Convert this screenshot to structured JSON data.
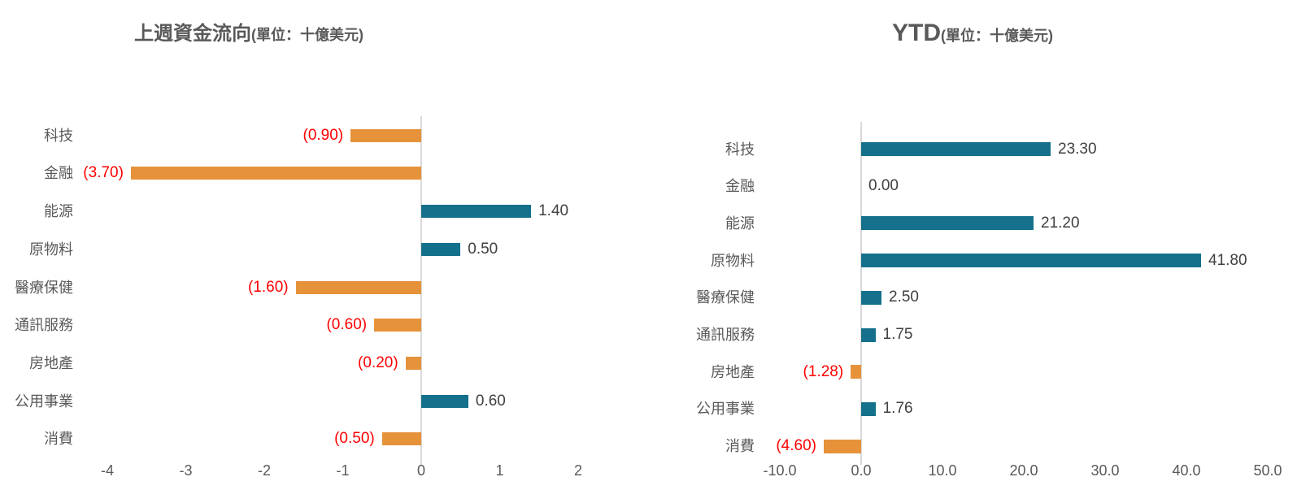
{
  "chart_data": [
    {
      "type": "bar",
      "orientation": "horizontal",
      "title": "上週資金流向",
      "title_unit": "(單位：十億美元)",
      "categories": [
        "科技",
        "金融",
        "能源",
        "原物料",
        "醫療保健",
        "通訊服務",
        "房地產",
        "公用事業",
        "消費"
      ],
      "values": [
        -0.9,
        -3.7,
        1.4,
        0.5,
        -1.6,
        -0.6,
        -0.2,
        0.6,
        -0.5
      ],
      "value_labels": [
        "(0.90)",
        "(3.70)",
        "1.40",
        "0.50",
        "(1.60)",
        "(0.60)",
        "(0.20)",
        "0.60",
        "(0.50)"
      ],
      "xlim": [
        -4,
        2
      ],
      "xticks": [
        -4,
        -3,
        -2,
        -1,
        0,
        1,
        2
      ],
      "xtick_labels": [
        "-4",
        "-3",
        "-2",
        "-1",
        "0",
        "1",
        "2"
      ],
      "grid": false,
      "legend": "none"
    },
    {
      "type": "bar",
      "orientation": "horizontal",
      "title": "YTD",
      "title_unit": "(單位：十億美元)",
      "categories": [
        "科技",
        "金融",
        "能源",
        "原物料",
        "醫療保健",
        "通訊服務",
        "房地產",
        "公用事業",
        "消費"
      ],
      "values": [
        23.3,
        0.0,
        21.2,
        41.8,
        2.5,
        1.75,
        -1.28,
        1.76,
        -4.6
      ],
      "value_labels": [
        "23.30",
        "0.00",
        "21.20",
        "41.80",
        "2.50",
        "1.75",
        "(1.28)",
        "1.76",
        "(4.60)"
      ],
      "xlim": [
        -10,
        50
      ],
      "xticks": [
        -10,
        0,
        10,
        20,
        30,
        40,
        50
      ],
      "xtick_labels": [
        "-10.0",
        "0.0",
        "10.0",
        "20.0",
        "30.0",
        "40.0",
        "50.0"
      ],
      "grid": false,
      "legend": "none"
    }
  ],
  "colors": {
    "background": "#FFFFFF",
    "positive_bar": "#15708C",
    "negative_bar": "#E6923A",
    "positive_value_label": "#404040",
    "negative_value_label": "#FF0000",
    "category_label": "#595959",
    "tick_label": "#595959",
    "axis_line": "#D9D9D9",
    "title": "#595959"
  }
}
